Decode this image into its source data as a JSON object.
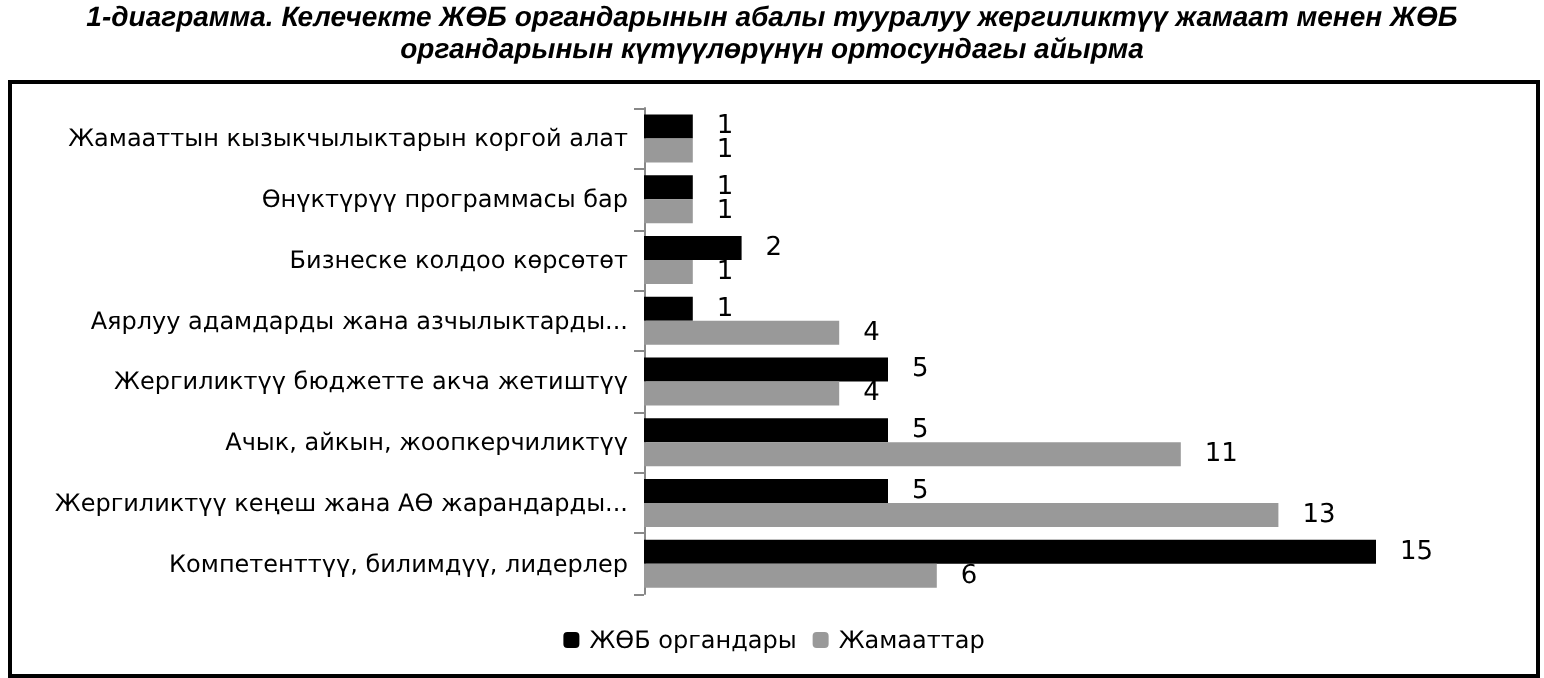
{
  "chart_data": {
    "type": "bar",
    "orientation": "horizontal",
    "title": "1-диаграмма. Келечекте ЖӨБ органдарынын абалы тууралуу жергиликтүү жамаат менен ЖӨБ органдарынын күтүүлөрүнүн ортосундагы айырма",
    "categories": [
      "Жамааттын кызыкчылыктарын коргой алат",
      "Өнүктүрүү программасы бар",
      "Бизнеске колдоо көрсөтөт",
      "Аярлуу адамдарды жана азчылыктарды...",
      "Жергиликтүү бюджетте акча жетиштүү",
      "Ачык, айкын, жоопкерчиликтүү",
      "Жергиликтүү кеңеш жана АӨ жарандарды...",
      "Компетенттүү, билимдүү, лидерлер"
    ],
    "series": [
      {
        "name": "ЖӨБ органдары",
        "color": "#000000",
        "values": [
          1,
          1,
          2,
          1,
          5,
          5,
          5,
          15
        ]
      },
      {
        "name": "Жамааттар",
        "color": "#999999",
        "values": [
          1,
          1,
          1,
          4,
          4,
          11,
          13,
          6
        ]
      }
    ],
    "data_labels": true,
    "legend": "bottom"
  }
}
